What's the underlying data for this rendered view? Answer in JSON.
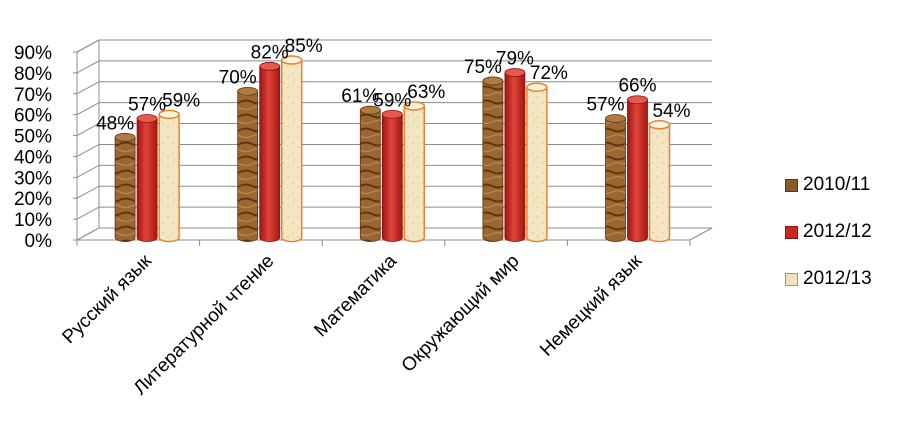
{
  "chart_data": {
    "type": "bar",
    "categories": [
      "Русский язык",
      "Литературной чтение",
      "Математика",
      "Окружающий мир",
      "Немецкий язык"
    ],
    "series": [
      {
        "name": "2010/11",
        "values": [
          48,
          70,
          61,
          75,
          57
        ],
        "color": "#8b5a2b"
      },
      {
        "name": "2012/12",
        "values": [
          57,
          82,
          59,
          79,
          66
        ],
        "color": "#c8281e"
      },
      {
        "name": "2012/13",
        "values": [
          59,
          85,
          63,
          72,
          54
        ],
        "color": "#f2e2be"
      }
    ],
    "data_labels": [
      [
        "48%",
        "70%",
        "61%",
        "75%",
        "57%"
      ],
      [
        "57%",
        "82%",
        "59%",
        "79%",
        "66%"
      ],
      [
        "59%",
        "85%",
        "63%",
        "72%",
        "54%"
      ]
    ],
    "yticks": [
      "0%",
      "10%",
      "20%",
      "30%",
      "40%",
      "50%",
      "60%",
      "70%",
      "80%",
      "90%"
    ],
    "ylim": [
      0,
      90
    ],
    "grid": true,
    "legend_position": "right",
    "title": "",
    "xlabel": "",
    "ylabel": ""
  }
}
